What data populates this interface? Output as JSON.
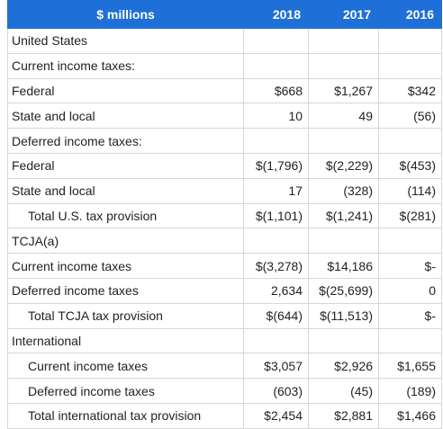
{
  "table": {
    "header": [
      "$ millions",
      "2018",
      "2017",
      "2016"
    ],
    "rows": [
      [
        "United States"
      ],
      [
        "Current income taxes:"
      ],
      [
        "Federal",
        "$668",
        "$1,267",
        "$342"
      ],
      [
        "State and local",
        "10",
        "49",
        "(56)"
      ],
      [
        "Deferred income taxes:"
      ],
      [
        "Federal",
        "$(1,796)",
        "$(2,229)",
        "$(453)"
      ],
      [
        "State and local",
        "17",
        "(328)",
        "(114)"
      ],
      [
        "Total U.S. tax provision",
        "$(1,101)",
        "$(1,241)",
        "$(281)"
      ],
      [
        "TCJA(a)"
      ],
      [
        "Current income taxes",
        "$(3,278)",
        "$14,186",
        "$-"
      ],
      [
        "Deferred income taxes",
        "2,634",
        "$(25,699)",
        "0"
      ],
      [
        "Total TCJA tax provision",
        "$(644)",
        "$(11,513)",
        "$-"
      ],
      [
        "International"
      ],
      [
        "Current income taxes",
        "$3,057",
        "$2,926",
        "$1,655"
      ],
      [
        "Deferred income taxes",
        "(603)",
        "(45)",
        "(189)"
      ],
      [
        "Total international tax provision",
        "$2,454",
        "$2,881",
        "$1,466"
      ]
    ]
  }
}
